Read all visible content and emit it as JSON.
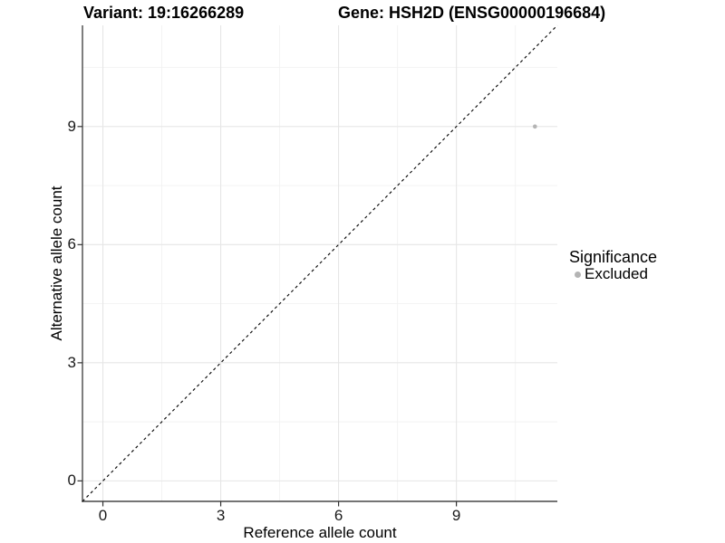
{
  "titles": {
    "left": "Variant: 19:16266289",
    "right": "Gene: HSH2D (ENSG00000196684)"
  },
  "chart_data": {
    "type": "scatter",
    "title_left": "Variant: 19:16266289",
    "title_right": "Gene: HSH2D (ENSG00000196684)",
    "xlabel": "Reference allele count",
    "ylabel": "Alternative allele count",
    "xlim": [
      -0.52,
      11.57
    ],
    "ylim": [
      -0.52,
      11.57
    ],
    "xticks": [
      0,
      3,
      6,
      9
    ],
    "yticks": [
      0,
      3,
      6,
      9
    ],
    "xticks_minor": [
      1.5,
      4.5,
      7.5,
      10.5
    ],
    "yticks_minor": [
      1.5,
      4.5,
      7.5,
      10.5
    ],
    "grid": "major+minor",
    "points": [
      {
        "x": 11,
        "y": 9,
        "series": "Excluded"
      }
    ],
    "reference_line": {
      "slope": 1,
      "intercept": 0,
      "style": "dashed"
    },
    "legend": {
      "position": "right",
      "title": "Significance",
      "items": [
        {
          "label": "Excluded",
          "color": "#b4b4b4"
        }
      ]
    }
  },
  "colors": {
    "point": "#b4b4b4",
    "reference_line": "#0a0a0a",
    "grid_major": "#e6e6e6",
    "grid_minor": "#f2f2f2",
    "axis_line": "#474747",
    "tick_mark": "#333333"
  }
}
